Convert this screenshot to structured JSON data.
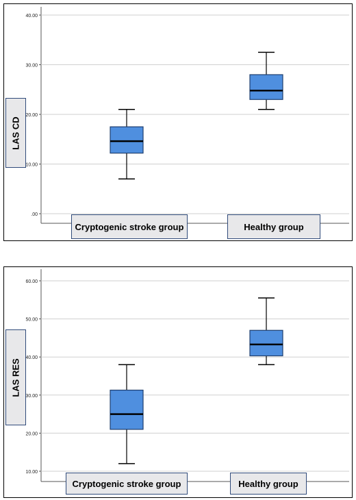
{
  "chart_data": [
    {
      "type": "box",
      "ylabel": "LAS CD",
      "ylim": [
        0,
        40
      ],
      "ticks": [
        {
          "value": 0,
          "label": ".00"
        },
        {
          "value": 10,
          "label": "10.00"
        },
        {
          "value": 20,
          "label": "20.00"
        },
        {
          "value": 30,
          "label": "30.00"
        },
        {
          "value": 40,
          "label": "40.00"
        }
      ],
      "categories": [
        "Cryptogenic stroke group",
        "Healthy group"
      ],
      "boxes": [
        {
          "min": 7.0,
          "q1": 12.2,
          "median": 14.6,
          "q3": 17.5,
          "max": 21.0
        },
        {
          "min": 21.0,
          "q1": 23.0,
          "median": 24.8,
          "q3": 28.0,
          "max": 32.5
        }
      ],
      "grid": true,
      "box_color": "#4f8fdf"
    },
    {
      "type": "box",
      "ylabel": "LAS RES",
      "ylim": [
        8,
        62
      ],
      "ticks": [
        {
          "value": 10,
          "label": "10.00"
        },
        {
          "value": 20,
          "label": "20.00"
        },
        {
          "value": 30,
          "label": "30.00"
        },
        {
          "value": 40,
          "label": "40.00"
        },
        {
          "value": 50,
          "label": "50.00"
        },
        {
          "value": 60,
          "label": "60.00"
        }
      ],
      "categories": [
        "Cryptogenic stroke group",
        "Healthy group"
      ],
      "boxes": [
        {
          "min": 12.0,
          "q1": 21.0,
          "median": 25.0,
          "q3": 31.3,
          "max": 38.0
        },
        {
          "min": 38.0,
          "q1": 40.3,
          "median": 43.3,
          "q3": 47.0,
          "max": 55.5
        }
      ],
      "grid": true,
      "box_color": "#4f8fdf"
    }
  ]
}
